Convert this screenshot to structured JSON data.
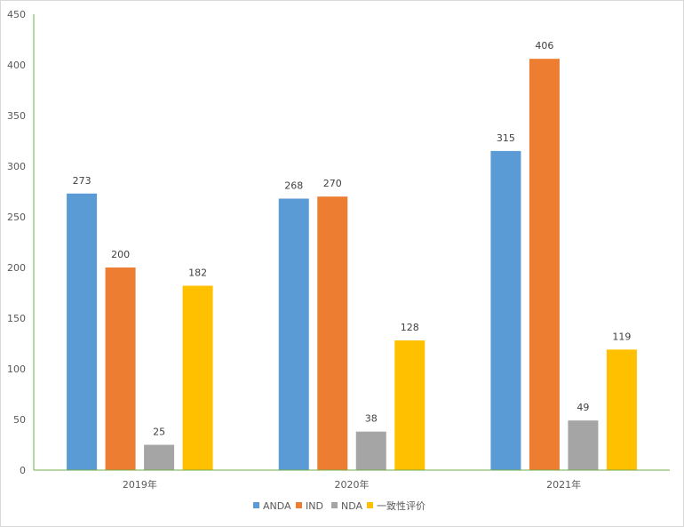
{
  "chart_data": {
    "type": "bar",
    "title": "",
    "xlabel": "",
    "ylabel": "",
    "categories": [
      "2019年",
      "2020年",
      "2021年"
    ],
    "series": [
      {
        "name": "ANDA",
        "values": [
          273,
          268,
          315
        ],
        "color": "#5b9bd5"
      },
      {
        "name": "IND",
        "values": [
          200,
          270,
          406
        ],
        "color": "#ed7d31"
      },
      {
        "name": "NDA",
        "values": [
          25,
          38,
          49
        ],
        "color": "#a5a5a5"
      },
      {
        "name": "一致性评价",
        "values": [
          182,
          128,
          119
        ],
        "color": "#ffc000"
      }
    ],
    "ylim": [
      0,
      450
    ],
    "yticks": [
      0,
      50,
      100,
      150,
      200,
      250,
      300,
      350,
      400,
      450
    ],
    "axis_color": "#70ad47",
    "grid": false,
    "legend_position": "bottom"
  }
}
